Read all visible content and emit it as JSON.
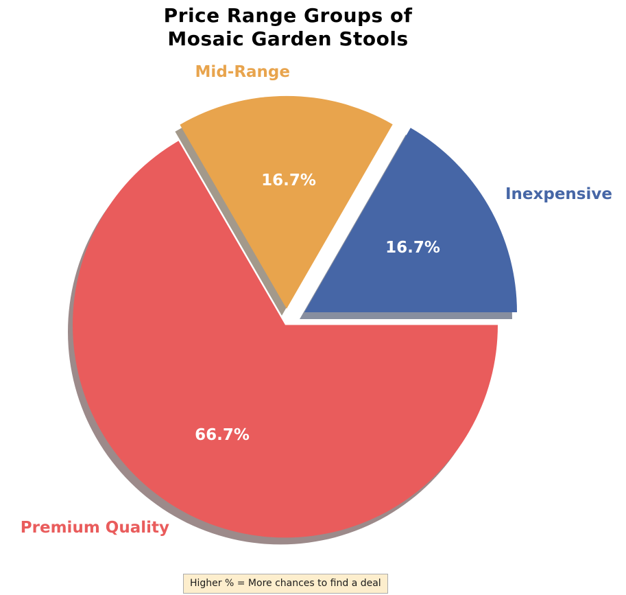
{
  "title": {
    "line1": "Price Range Groups of",
    "line2": "Mosaic Garden Stools"
  },
  "note": "Higher % = More chances to find a deal",
  "chart_data": {
    "type": "pie",
    "title": "Price Range Groups of Mosaic Garden Stools",
    "start_angle": 0,
    "direction": "counterclockwise",
    "shadow": true,
    "percent_text_color": "#ffffff",
    "note_box": {
      "text": "Higher % = More chances to find a deal",
      "background": "#fdeecd",
      "border_color": "#ababab"
    },
    "slices": [
      {
        "label": "Inexpensive",
        "value": 16.7,
        "pct_label": "16.7%",
        "color": "#4666a6",
        "shadow_color": "#878e9f",
        "explode": 0.097
      },
      {
        "label": "Mid-Range",
        "value": 16.7,
        "pct_label": "16.7%",
        "color": "#e8a44d",
        "shadow_color": "#a3998b",
        "explode": 0.065
      },
      {
        "label": "Premium Quality",
        "value": 66.7,
        "pct_label": "66.7%",
        "color": "#e95c5c",
        "shadow_color": "#9c8a8a",
        "explode": 0.013
      }
    ]
  }
}
